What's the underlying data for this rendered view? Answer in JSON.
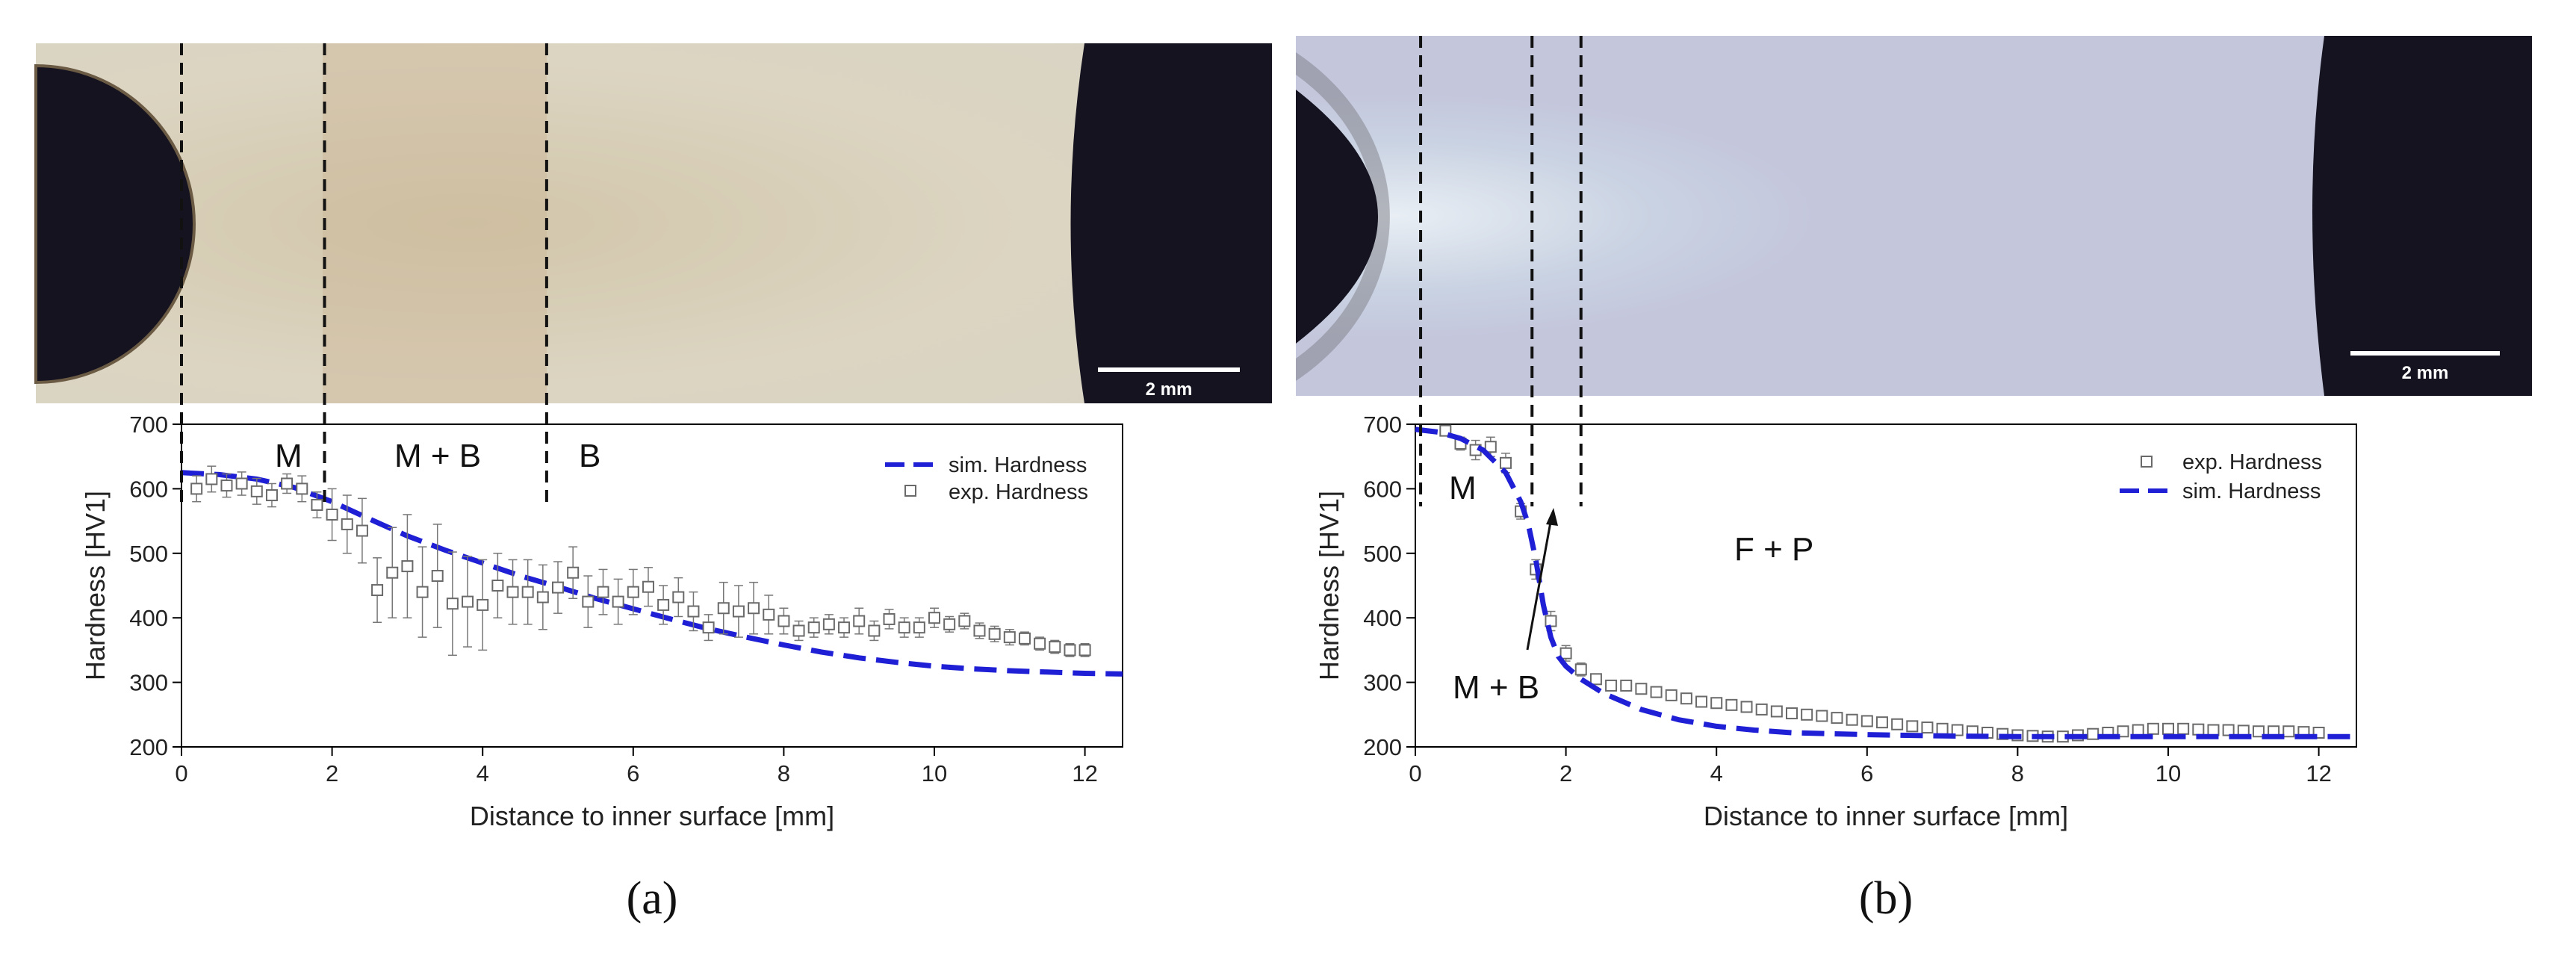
{
  "figure": {
    "panels": [
      {
        "id": "a",
        "label": "(a)",
        "scalebar": "2 mm",
        "regions": [
          "M",
          "M + B",
          "B"
        ]
      },
      {
        "id": "b",
        "label": "(b)",
        "scalebar": "2 mm",
        "regions": [
          "M",
          "M + B",
          "F + P"
        ]
      }
    ]
  },
  "colors": {
    "sim": "#1f1fd6",
    "exp": "#7a7a7a",
    "micro_a": "#d8cfb8",
    "micro_b": "#c4c8dc",
    "hole": "#14131f"
  },
  "chart_data": [
    {
      "type": "scatter",
      "panel": "a",
      "xlabel": "Distance to inner surface [mm]",
      "ylabel": "Hardness [HV1]",
      "xlim": [
        0,
        12.5
      ],
      "ylim": [
        200,
        700
      ],
      "xticks": [
        0,
        2,
        4,
        6,
        8,
        10,
        12
      ],
      "yticks": [
        200,
        300,
        400,
        500,
        600,
        700
      ],
      "legend": "top-right",
      "grid": false,
      "boundaries_mm": [
        0,
        1.9,
        4.85
      ],
      "series": [
        {
          "name": "sim. Hardness",
          "style": "dashed-line",
          "x": [
            0,
            0.5,
            1.0,
            1.5,
            2.0,
            2.5,
            3.0,
            3.5,
            4.0,
            4.5,
            5.0,
            5.5,
            6.0,
            6.5,
            7.0,
            7.5,
            8.0,
            8.5,
            9.0,
            9.5,
            10.0,
            10.5,
            11.0,
            11.5,
            12.0,
            12.5
          ],
          "y": [
            625,
            622,
            615,
            602,
            580,
            553,
            527,
            505,
            485,
            465,
            448,
            430,
            414,
            398,
            383,
            370,
            358,
            347,
            338,
            331,
            325,
            321,
            318,
            316,
            314,
            313
          ]
        },
        {
          "name": "exp. Hardness",
          "style": "open-square-errorbar",
          "x": [
            0.2,
            0.4,
            0.6,
            0.8,
            1.0,
            1.2,
            1.4,
            1.6,
            1.8,
            2.0,
            2.2,
            2.4,
            2.6,
            2.8,
            3.0,
            3.2,
            3.4,
            3.6,
            3.8,
            4.0,
            4.2,
            4.4,
            4.6,
            4.8,
            5.0,
            5.2,
            5.4,
            5.6,
            5.8,
            6.0,
            6.2,
            6.4,
            6.6,
            6.8,
            7.0,
            7.2,
            7.4,
            7.6,
            7.8,
            8.0,
            8.2,
            8.4,
            8.6,
            8.8,
            9.0,
            9.2,
            9.4,
            9.6,
            9.8,
            10.0,
            10.2,
            10.4,
            10.6,
            10.8,
            11.0,
            11.2,
            11.4,
            11.6,
            11.8,
            12.0
          ],
          "y": [
            600,
            615,
            605,
            608,
            596,
            590,
            608,
            600,
            575,
            560,
            545,
            535,
            443,
            470,
            480,
            440,
            465,
            422,
            425,
            420,
            450,
            440,
            440,
            432,
            447,
            470,
            425,
            440,
            425,
            440,
            448,
            420,
            432,
            410,
            385,
            415,
            410,
            415,
            405,
            395,
            380,
            385,
            390,
            385,
            395,
            380,
            398,
            385,
            385,
            400,
            390,
            395,
            380,
            375,
            370,
            368,
            360,
            355,
            350,
            350
          ],
          "err": [
            20,
            20,
            18,
            18,
            20,
            18,
            15,
            20,
            20,
            40,
            45,
            50,
            50,
            70,
            80,
            70,
            80,
            80,
            70,
            70,
            50,
            50,
            50,
            50,
            40,
            40,
            40,
            35,
            35,
            35,
            30,
            30,
            30,
            30,
            20,
            40,
            40,
            40,
            30,
            20,
            15,
            15,
            15,
            15,
            20,
            15,
            15,
            15,
            15,
            15,
            12,
            12,
            12,
            12,
            12,
            10,
            10,
            10,
            10,
            10
          ]
        }
      ]
    },
    {
      "type": "scatter",
      "panel": "b",
      "xlabel": "Distance to inner surface [mm]",
      "ylabel": "Hardness [HV1]",
      "xlim": [
        0,
        12.5
      ],
      "ylim": [
        200,
        700
      ],
      "xticks": [
        0,
        2,
        4,
        6,
        8,
        10,
        12
      ],
      "yticks": [
        200,
        300,
        400,
        500,
        600,
        700
      ],
      "legend": "top-right",
      "grid": false,
      "boundaries_mm": [
        0.07,
        1.55,
        2.2
      ],
      "series": [
        {
          "name": "exp. Hardness",
          "style": "open-square-errorbar",
          "x": [
            0.4,
            0.6,
            0.8,
            1.0,
            1.2,
            1.4,
            1.6,
            1.8,
            2.0,
            2.2,
            2.4,
            2.6,
            2.8,
            3.0,
            3.2,
            3.4,
            3.6,
            3.8,
            4.0,
            4.2,
            4.4,
            4.6,
            4.8,
            5.0,
            5.2,
            5.4,
            5.6,
            5.8,
            6.0,
            6.2,
            6.4,
            6.6,
            6.8,
            7.0,
            7.2,
            7.4,
            7.6,
            7.8,
            8.0,
            8.2,
            8.4,
            8.6,
            8.8,
            9.0,
            9.2,
            9.4,
            9.6,
            9.8,
            10.0,
            10.2,
            10.4,
            10.6,
            10.8,
            11.0,
            11.2,
            11.4,
            11.6,
            11.8,
            12.0
          ],
          "y": [
            690,
            670,
            660,
            665,
            640,
            565,
            475,
            395,
            345,
            320,
            305,
            295,
            295,
            290,
            285,
            280,
            275,
            270,
            268,
            265,
            262,
            258,
            255,
            252,
            250,
            248,
            245,
            242,
            240,
            238,
            235,
            232,
            230,
            228,
            226,
            224,
            222,
            220,
            218,
            217,
            216,
            216,
            218,
            220,
            222,
            224,
            226,
            228,
            228,
            228,
            227,
            226,
            226,
            225,
            224,
            224,
            224,
            223,
            222
          ],
          "err": [
            8,
            10,
            15,
            15,
            15,
            12,
            15,
            15,
            12,
            10,
            8,
            6,
            6,
            6,
            6,
            6,
            6,
            6,
            6,
            6,
            6,
            6,
            6,
            6,
            6,
            6,
            6,
            6,
            6,
            6,
            6,
            6,
            6,
            6,
            6,
            6,
            6,
            6,
            6,
            6,
            6,
            6,
            6,
            6,
            6,
            6,
            6,
            6,
            6,
            6,
            6,
            6,
            6,
            6,
            6,
            6,
            6,
            6,
            6
          ]
        },
        {
          "name": "sim. Hardness",
          "style": "dashed-line",
          "x": [
            0,
            0.3,
            0.6,
            0.9,
            1.2,
            1.4,
            1.5,
            1.6,
            1.7,
            1.8,
            1.9,
            2.0,
            2.2,
            2.5,
            3.0,
            3.5,
            4.0,
            4.5,
            5.0,
            6.0,
            7.0,
            8.0,
            9.0,
            10.0,
            11.0,
            12.0,
            12.5
          ],
          "y": [
            692,
            688,
            678,
            660,
            625,
            580,
            545,
            490,
            420,
            370,
            340,
            325,
            305,
            283,
            258,
            242,
            232,
            226,
            222,
            219,
            217,
            216,
            216,
            216,
            216,
            216,
            216
          ]
        }
      ]
    }
  ]
}
